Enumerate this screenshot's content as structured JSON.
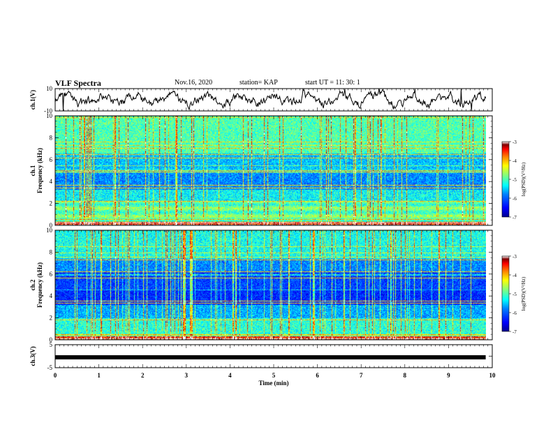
{
  "header": {
    "title": "VLF Spectra",
    "date": "Nov.16, 2020",
    "station": "station= KAP",
    "start": "start  UT =   11: 30: 1"
  },
  "chart_data": [
    {
      "type": "line",
      "panel": "ch1-waveform",
      "ylabel": "ch.1(V)",
      "ylim": [
        -10,
        10
      ],
      "yticks": [
        10,
        -10
      ],
      "xlim": [
        0,
        10
      ],
      "description_values": "broadband waveform, roughly -6 to 6 V"
    },
    {
      "type": "heatmap",
      "panel": "ch1-spectrogram",
      "ylabel": "ch.1\nFrequency  (kHz)",
      "ylabel_lines": [
        "ch.1",
        "Frequency  (kHz)"
      ],
      "ylim": [
        0,
        10
      ],
      "yticks": [
        0,
        2,
        4,
        6,
        8,
        10
      ],
      "xlim": [
        0,
        10
      ],
      "colorbar": {
        "label": "log(PSD)(V²/Hz)",
        "range": [
          -7,
          -3
        ],
        "ticks": [
          -3,
          -4,
          -5,
          -6,
          -7
        ]
      }
    },
    {
      "type": "heatmap",
      "panel": "ch2-spectrogram",
      "ylabel": "ch.2\nFrequency  (kHz)",
      "ylabel_lines": [
        "ch.2",
        "Frequency  (kHz)"
      ],
      "ylim": [
        0,
        10
      ],
      "yticks": [
        0,
        2,
        4,
        6,
        8,
        10
      ],
      "xlim": [
        0,
        10
      ],
      "colorbar": {
        "label": "log(PSD)(V²/Hz)",
        "range": [
          -7,
          -3
        ],
        "ticks": [
          -3,
          -4,
          -5,
          -6,
          -7
        ]
      }
    },
    {
      "type": "line",
      "panel": "ch3-signal",
      "ylabel": "ch.3(V)",
      "ylim": [
        -5,
        5
      ],
      "yticks": [
        5,
        0,
        -5
      ],
      "yticklabels": [
        "5",
        "",
        "-5"
      ],
      "xlim": [
        0,
        10
      ],
      "x": [
        0,
        9.85
      ],
      "y": [
        -0.5,
        -0.5
      ]
    }
  ],
  "x_axis": {
    "label": "Time  (min)",
    "ticks": [
      0,
      1,
      2,
      3,
      4,
      5,
      6,
      7,
      8,
      9,
      10
    ],
    "data_end_min": 9.85
  },
  "colors": {
    "colormap": [
      "#00008f",
      "#0000ff",
      "#0080ff",
      "#00ffff",
      "#80ff80",
      "#ffff00",
      "#ff8000",
      "#ff0000",
      "#800000",
      "#ffffff"
    ],
    "ch3_signal": "#000000"
  }
}
